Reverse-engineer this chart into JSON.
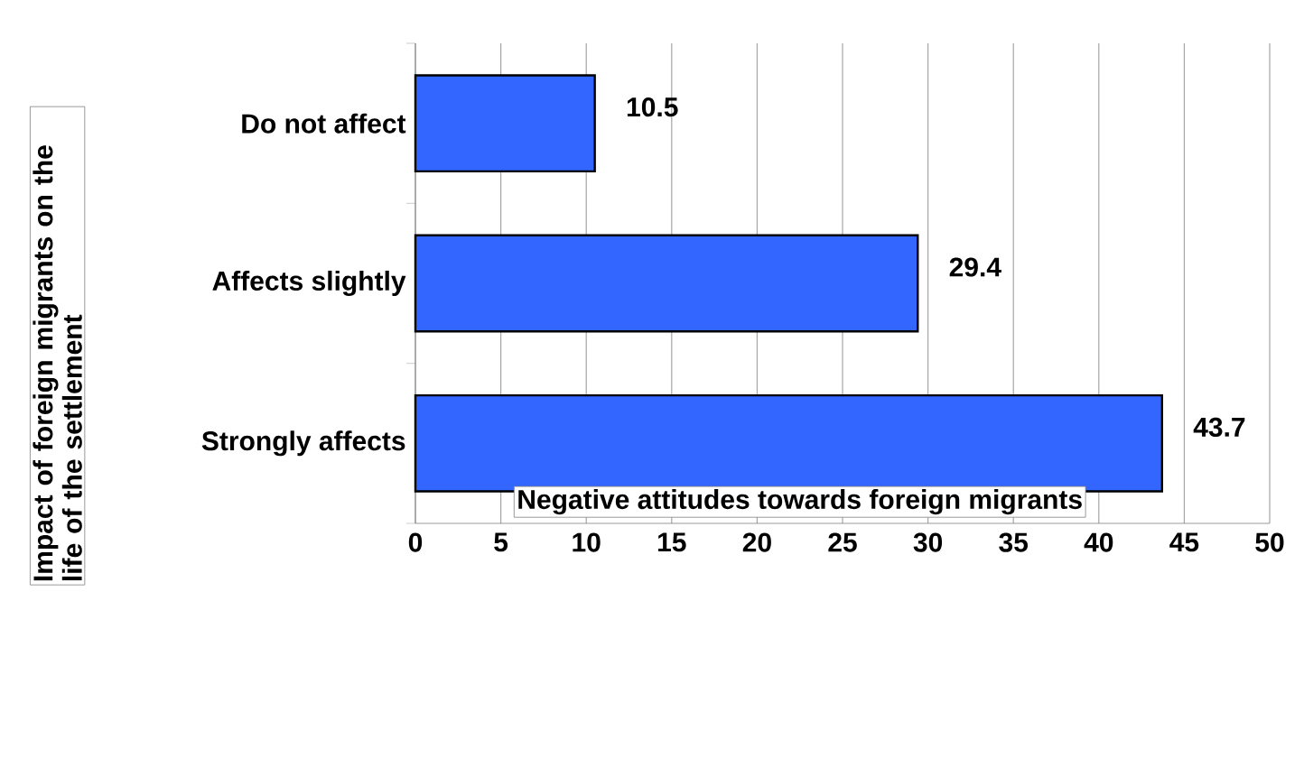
{
  "chart_data": {
    "type": "bar",
    "orientation": "horizontal",
    "xlabel": "Negative attitudes towards foreign migrants",
    "ylabel": "Impact of foreign migrants on the life of the settlement",
    "categories": [
      "Do not affect",
      "Affects slightly",
      "Strongly affects"
    ],
    "values": [
      10.5,
      29.4,
      43.7
    ],
    "value_labels": [
      "10.5",
      "29.4",
      "43.7"
    ],
    "color": "#3366ff",
    "xlim": [
      0,
      50
    ],
    "xticks": [
      0,
      5,
      10,
      15,
      20,
      25,
      30,
      35,
      40,
      45,
      50
    ],
    "grid": "x"
  }
}
